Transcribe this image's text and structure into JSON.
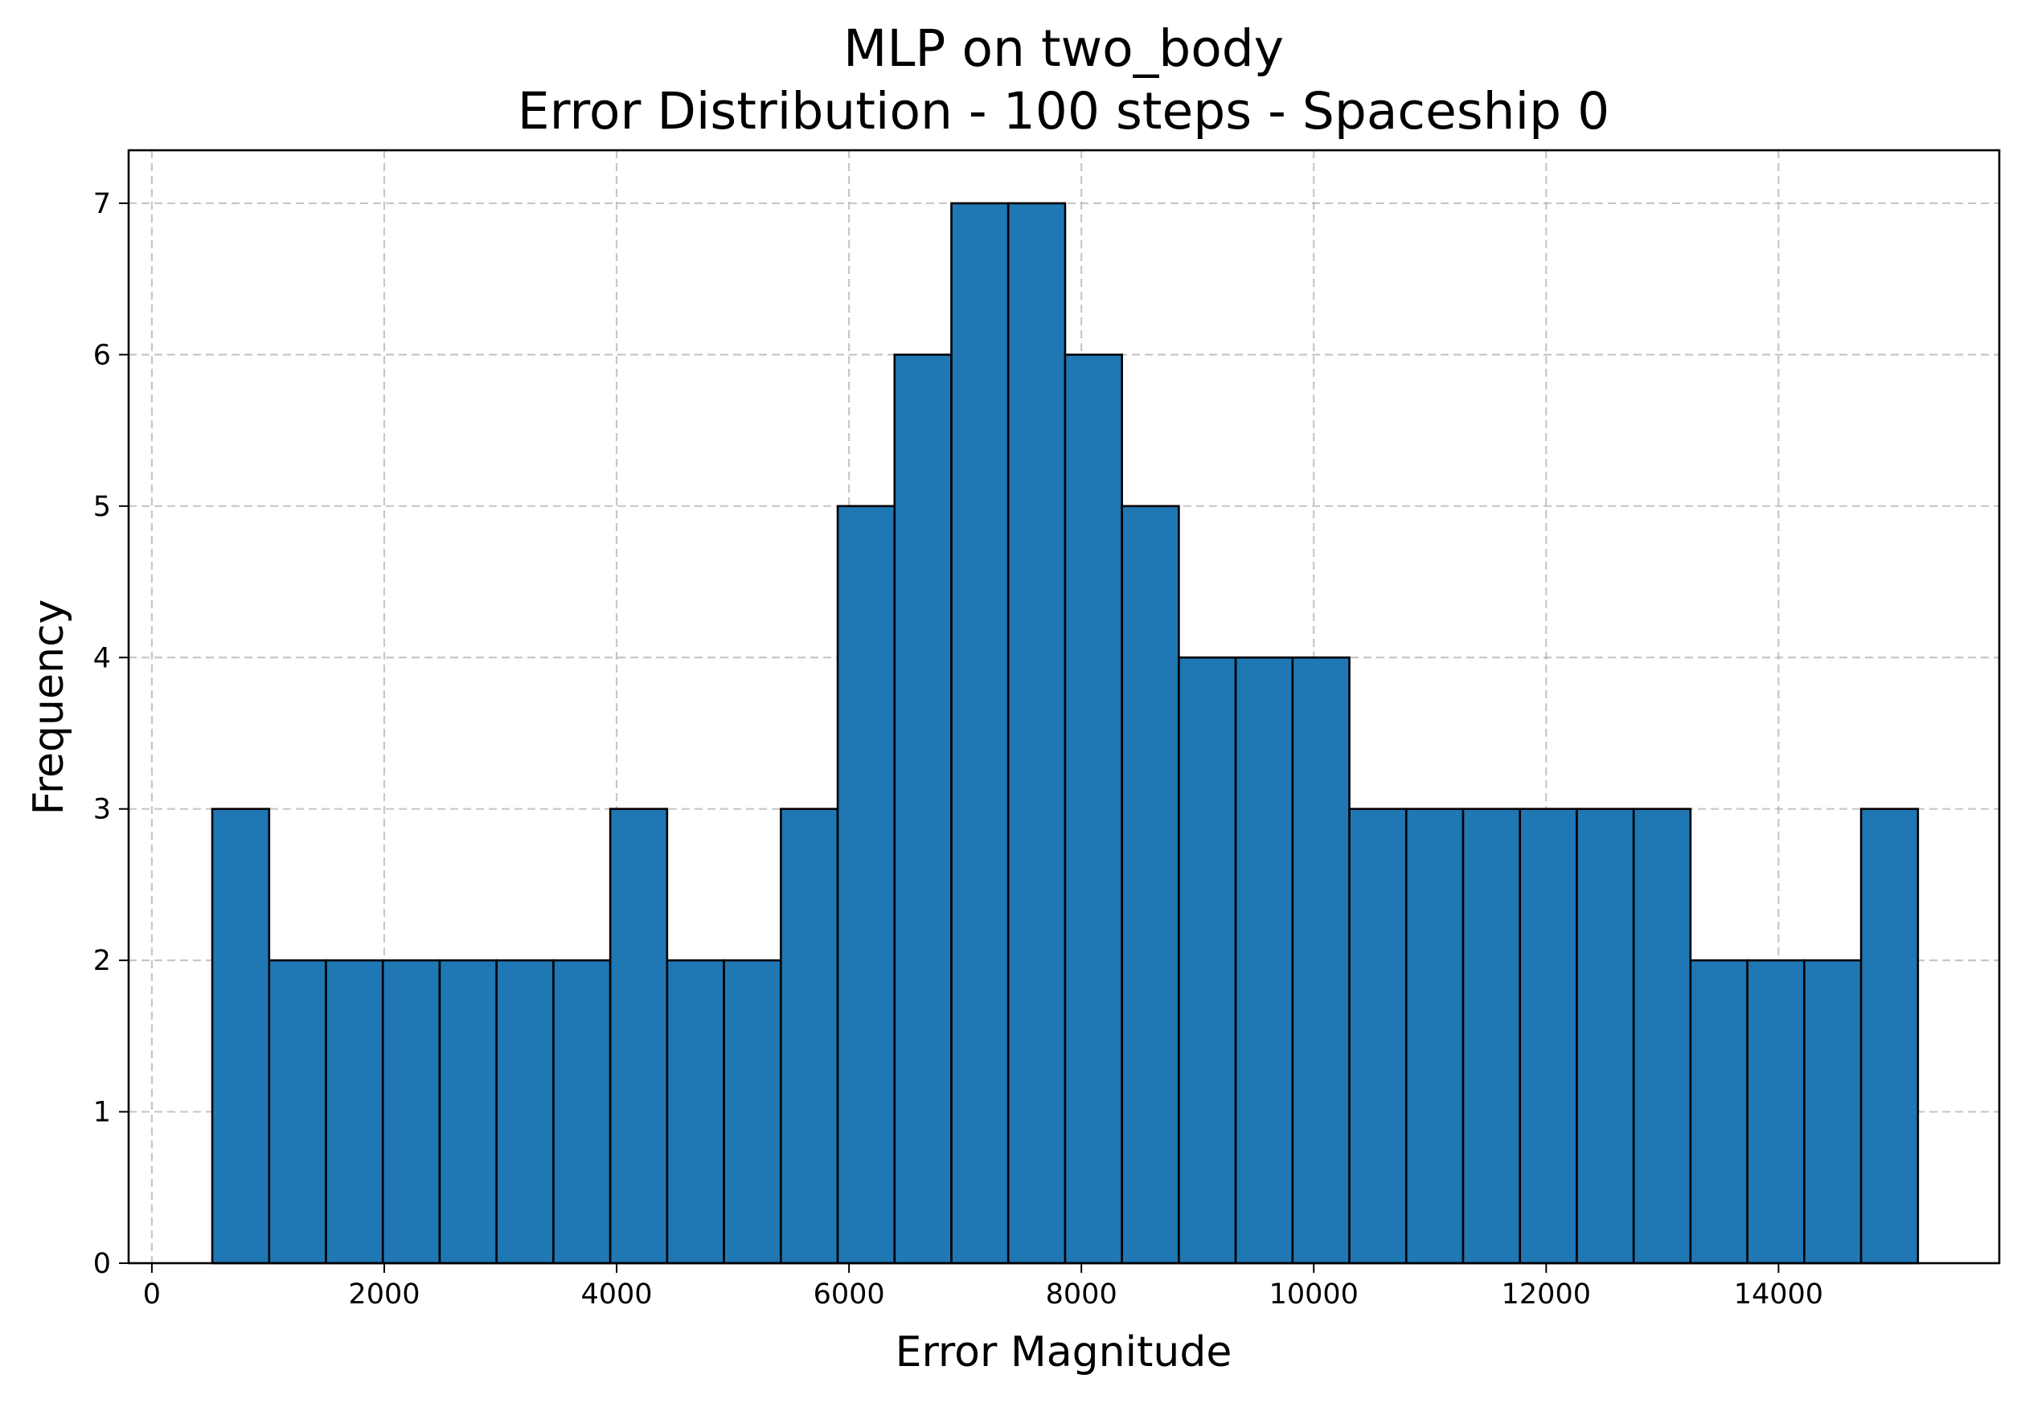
{
  "chart_data": {
    "type": "bar",
    "title": "MLP on two_body",
    "subtitle": "Error Distribution - 100 steps - Spaceship 0",
    "xlabel": "Error Magnitude",
    "ylabel": "Frequency",
    "xlim": [
      -200,
      15900
    ],
    "ylim": [
      0,
      7.35
    ],
    "xticks": [
      0,
      2000,
      4000,
      6000,
      8000,
      10000,
      12000,
      14000
    ],
    "yticks": [
      0,
      1,
      2,
      3,
      4,
      5,
      6,
      7
    ],
    "grid": true,
    "bar_color": "#1f77b4",
    "edge_color": "#000000",
    "bin_start": 520,
    "bin_end": 15200,
    "bin_width": 489.33,
    "values": [
      3,
      2,
      2,
      2,
      2,
      2,
      2,
      3,
      2,
      2,
      3,
      5,
      6,
      7,
      7,
      6,
      5,
      4,
      4,
      4,
      3,
      3,
      3,
      3,
      3,
      3,
      2,
      2,
      2,
      3
    ]
  }
}
